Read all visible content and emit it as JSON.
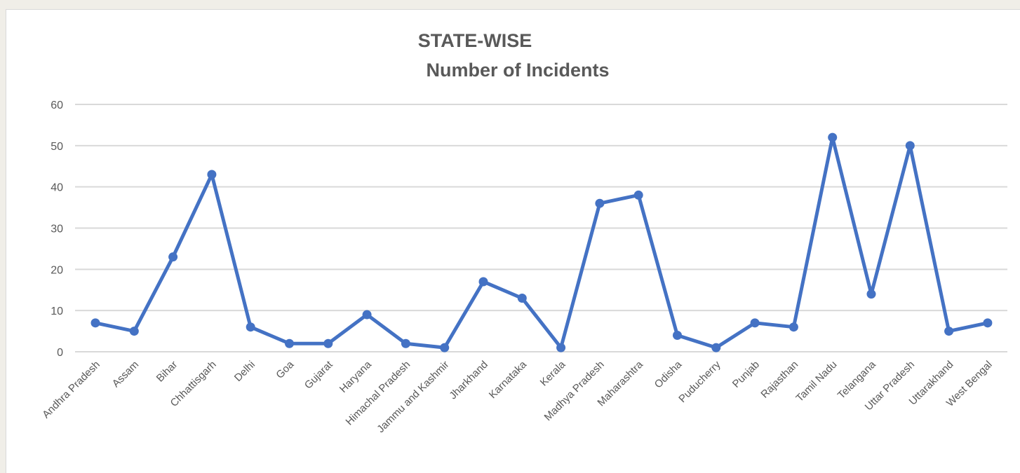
{
  "chart_data": {
    "type": "line",
    "title_line1": "STATE-WISE",
    "title_line2": "Number of Incidents",
    "xlabel": "",
    "ylabel": "",
    "ylim": [
      0,
      60
    ],
    "yticks": [
      0,
      10,
      20,
      30,
      40,
      50,
      60
    ],
    "grid": true,
    "legend": "none",
    "line_color": "#4472c4",
    "categories": [
      "Andhra Pradesh",
      "Assam",
      "Bihar",
      "Chhattisgarh",
      "Delhi",
      "Goa",
      "Gujarat",
      "Haryana",
      "Himachal Pradesh",
      "Jammu and Kashmir",
      "Jharkhand",
      "Karnataka",
      "Kerala",
      "Madhya Pradesh",
      "Maharashtra",
      "Odisha",
      "Puducherry",
      "Punjab",
      "Rajasthan",
      "Tamil Nadu",
      "Telangana",
      "Uttar Pradesh",
      "Uttarakhand",
      "West Bengal"
    ],
    "values": [
      7,
      5,
      23,
      43,
      6,
      2,
      2,
      9,
      2,
      1,
      17,
      13,
      1,
      36,
      38,
      4,
      1,
      7,
      6,
      52,
      14,
      50,
      5,
      7
    ]
  }
}
